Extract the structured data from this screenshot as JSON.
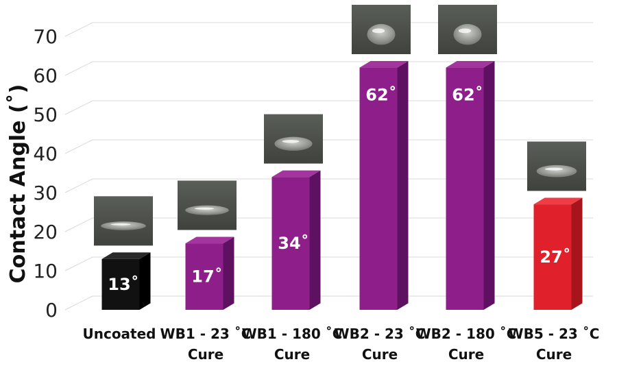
{
  "chart_data": {
    "type": "bar",
    "title": "",
    "xlabel": "",
    "ylabel": "Contact Angle (˚)",
    "ylim": [
      0,
      70
    ],
    "yticks": [
      0,
      10,
      20,
      30,
      40,
      50,
      60,
      70
    ],
    "grid": true,
    "categories": [
      [
        "Uncoated"
      ],
      [
        "WB1 - 23 ˚C",
        "Cure"
      ],
      [
        "WB1 - 180 ˚C",
        "Cure"
      ],
      [
        "WB2 - 23 ˚C",
        "Cure"
      ],
      [
        "WB2 - 180 ˚C",
        "Cure"
      ],
      [
        "WB5 - 23 ˚C",
        "Cure"
      ]
    ],
    "values": [
      13,
      17,
      34,
      62,
      62,
      27
    ],
    "data_labels": [
      "13˚",
      "17˚",
      "34˚",
      "62˚",
      "62˚",
      "27˚"
    ],
    "colors": [
      "#111111",
      "#8e1f8a",
      "#8e1f8a",
      "#8e1f8a",
      "#8e1f8a",
      "#e0202a"
    ],
    "side_colors": [
      "#000000",
      "#5e1160",
      "#5e1160",
      "#5e1160",
      "#5e1160",
      "#a8141c"
    ],
    "top_colors": [
      "#2a2a2a",
      "#a4359f",
      "#a4359f",
      "#a4359f",
      "#a4359f",
      "#ee3d44"
    ],
    "droplet_images": true,
    "style": "3d-columns"
  }
}
